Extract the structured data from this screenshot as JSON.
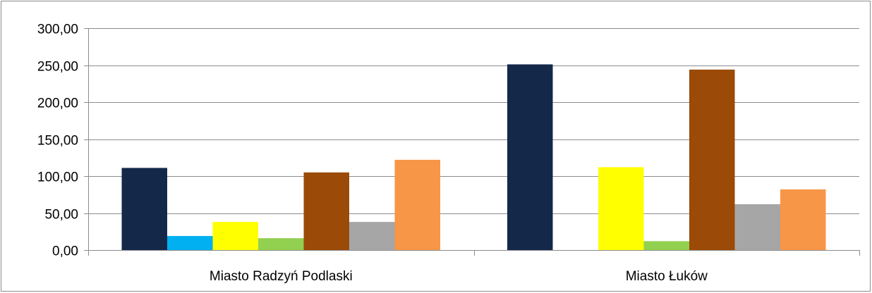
{
  "chart_data": {
    "type": "bar",
    "categories": [
      "Miasto Radzyń Podlaski",
      "Miasto Łuków"
    ],
    "series": [
      {
        "color": "#14284a",
        "values": [
          111,
          251
        ]
      },
      {
        "color": "#00b0f0",
        "values": [
          19,
          0
        ]
      },
      {
        "color": "#ffff00",
        "values": [
          38,
          112
        ]
      },
      {
        "color": "#92d050",
        "values": [
          16,
          12
        ]
      },
      {
        "color": "#9b4a08",
        "values": [
          105,
          244
        ]
      },
      {
        "color": "#a6a6a6",
        "values": [
          38,
          62
        ]
      },
      {
        "color": "#f79646",
        "values": [
          122,
          82
        ]
      }
    ],
    "ylim": [
      0,
      300
    ],
    "yticks": [
      "0,00",
      "50,00",
      "100,00",
      "150,00",
      "200,00",
      "250,00",
      "300,00"
    ],
    "ytick_values": [
      0,
      50,
      100,
      150,
      200,
      250,
      300
    ],
    "grid": true,
    "title": "",
    "xlabel": "",
    "ylabel": ""
  }
}
